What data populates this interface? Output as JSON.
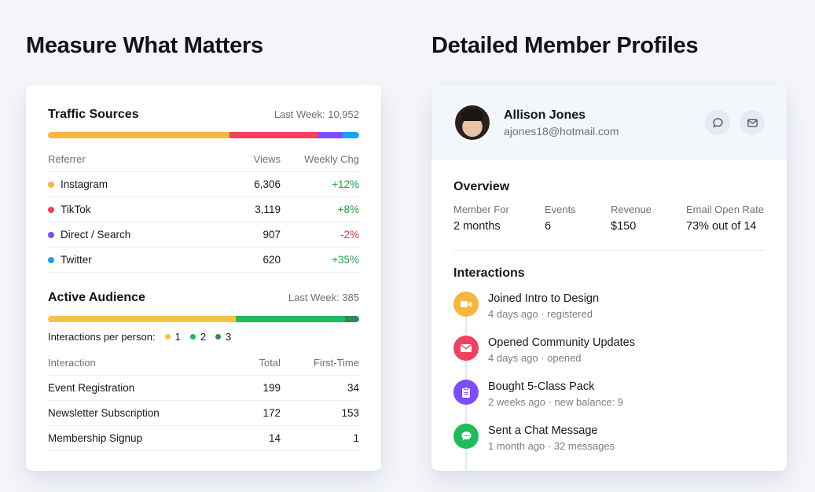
{
  "left_heading": "Measure What Matters",
  "right_heading": "Detailed Member Profiles",
  "traffic": {
    "title": "Traffic Sources",
    "meta": "Last Week: 10,952",
    "bar": [
      {
        "color": "#f6b73c",
        "share": 0.583
      },
      {
        "color": "#f43f5e",
        "share": 0.285
      },
      {
        "color": "#7c4dff",
        "share": 0.08
      },
      {
        "color": "#1aa3f0",
        "share": 0.052
      }
    ],
    "headers": [
      "Referrer",
      "Views",
      "Weekly Chg"
    ],
    "rows": [
      {
        "name": "Instagram",
        "views": "6,306",
        "chg": "+12%",
        "dot": "#f6b73c"
      },
      {
        "name": "TikTok",
        "views": "3,119",
        "chg": "+8%",
        "dot": "#f43f5e"
      },
      {
        "name": "Direct / Search",
        "views": "907",
        "chg": "-2%",
        "dot": "#7c4dff"
      },
      {
        "name": "Twitter",
        "views": "620",
        "chg": "+35%",
        "dot": "#1aa3f0"
      }
    ]
  },
  "audience": {
    "title": "Active Audience",
    "meta": "Last Week: 385",
    "bar": [
      {
        "color": "#f6c445",
        "share": 0.604
      },
      {
        "color": "#1ebc5a",
        "share": 0.35
      },
      {
        "color": "#2f8a55",
        "share": 0.046
      }
    ],
    "legend_label": "Interactions per person:",
    "legend": [
      {
        "label": "1",
        "color": "#f6c445"
      },
      {
        "label": "2",
        "color": "#1ebc5a"
      },
      {
        "label": "3",
        "color": "#2f8a55"
      }
    ],
    "headers": [
      "Interaction",
      "Total",
      "First-Time"
    ],
    "rows": [
      {
        "name": "Event Registration",
        "total": "199",
        "first": "34"
      },
      {
        "name": "Newsletter Subscription",
        "total": "172",
        "first": "153"
      },
      {
        "name": "Membership Signup",
        "total": "14",
        "first": "1"
      }
    ]
  },
  "profile": {
    "name": "Allison Jones",
    "email": "ajones18@hotmail.com",
    "overview_title": "Overview",
    "stats": [
      {
        "label": "Member For",
        "value": "2 months"
      },
      {
        "label": "Events",
        "value": "6"
      },
      {
        "label": "Revenue",
        "value": "$150"
      },
      {
        "label": "Email Open Rate",
        "value": "73% out of 14"
      }
    ],
    "interactions_title": "Interactions",
    "interactions": [
      {
        "title": "Joined Intro to Design",
        "sub": "4 days ago · registered",
        "color": "#f6b73c",
        "icon": "video-icon"
      },
      {
        "title": "Opened Community Updates",
        "sub": "4 days ago · opened",
        "color": "#f43f5e",
        "icon": "envelope-icon"
      },
      {
        "title": "Bought 5-Class Pack",
        "sub": "2 weeks ago · new balance: 9",
        "color": "#7c4dff",
        "icon": "clipboard-icon"
      },
      {
        "title": "Sent a Chat Message",
        "sub": "1 month ago · 32 messages",
        "color": "#1ebc5a",
        "icon": "chat-icon"
      }
    ]
  }
}
